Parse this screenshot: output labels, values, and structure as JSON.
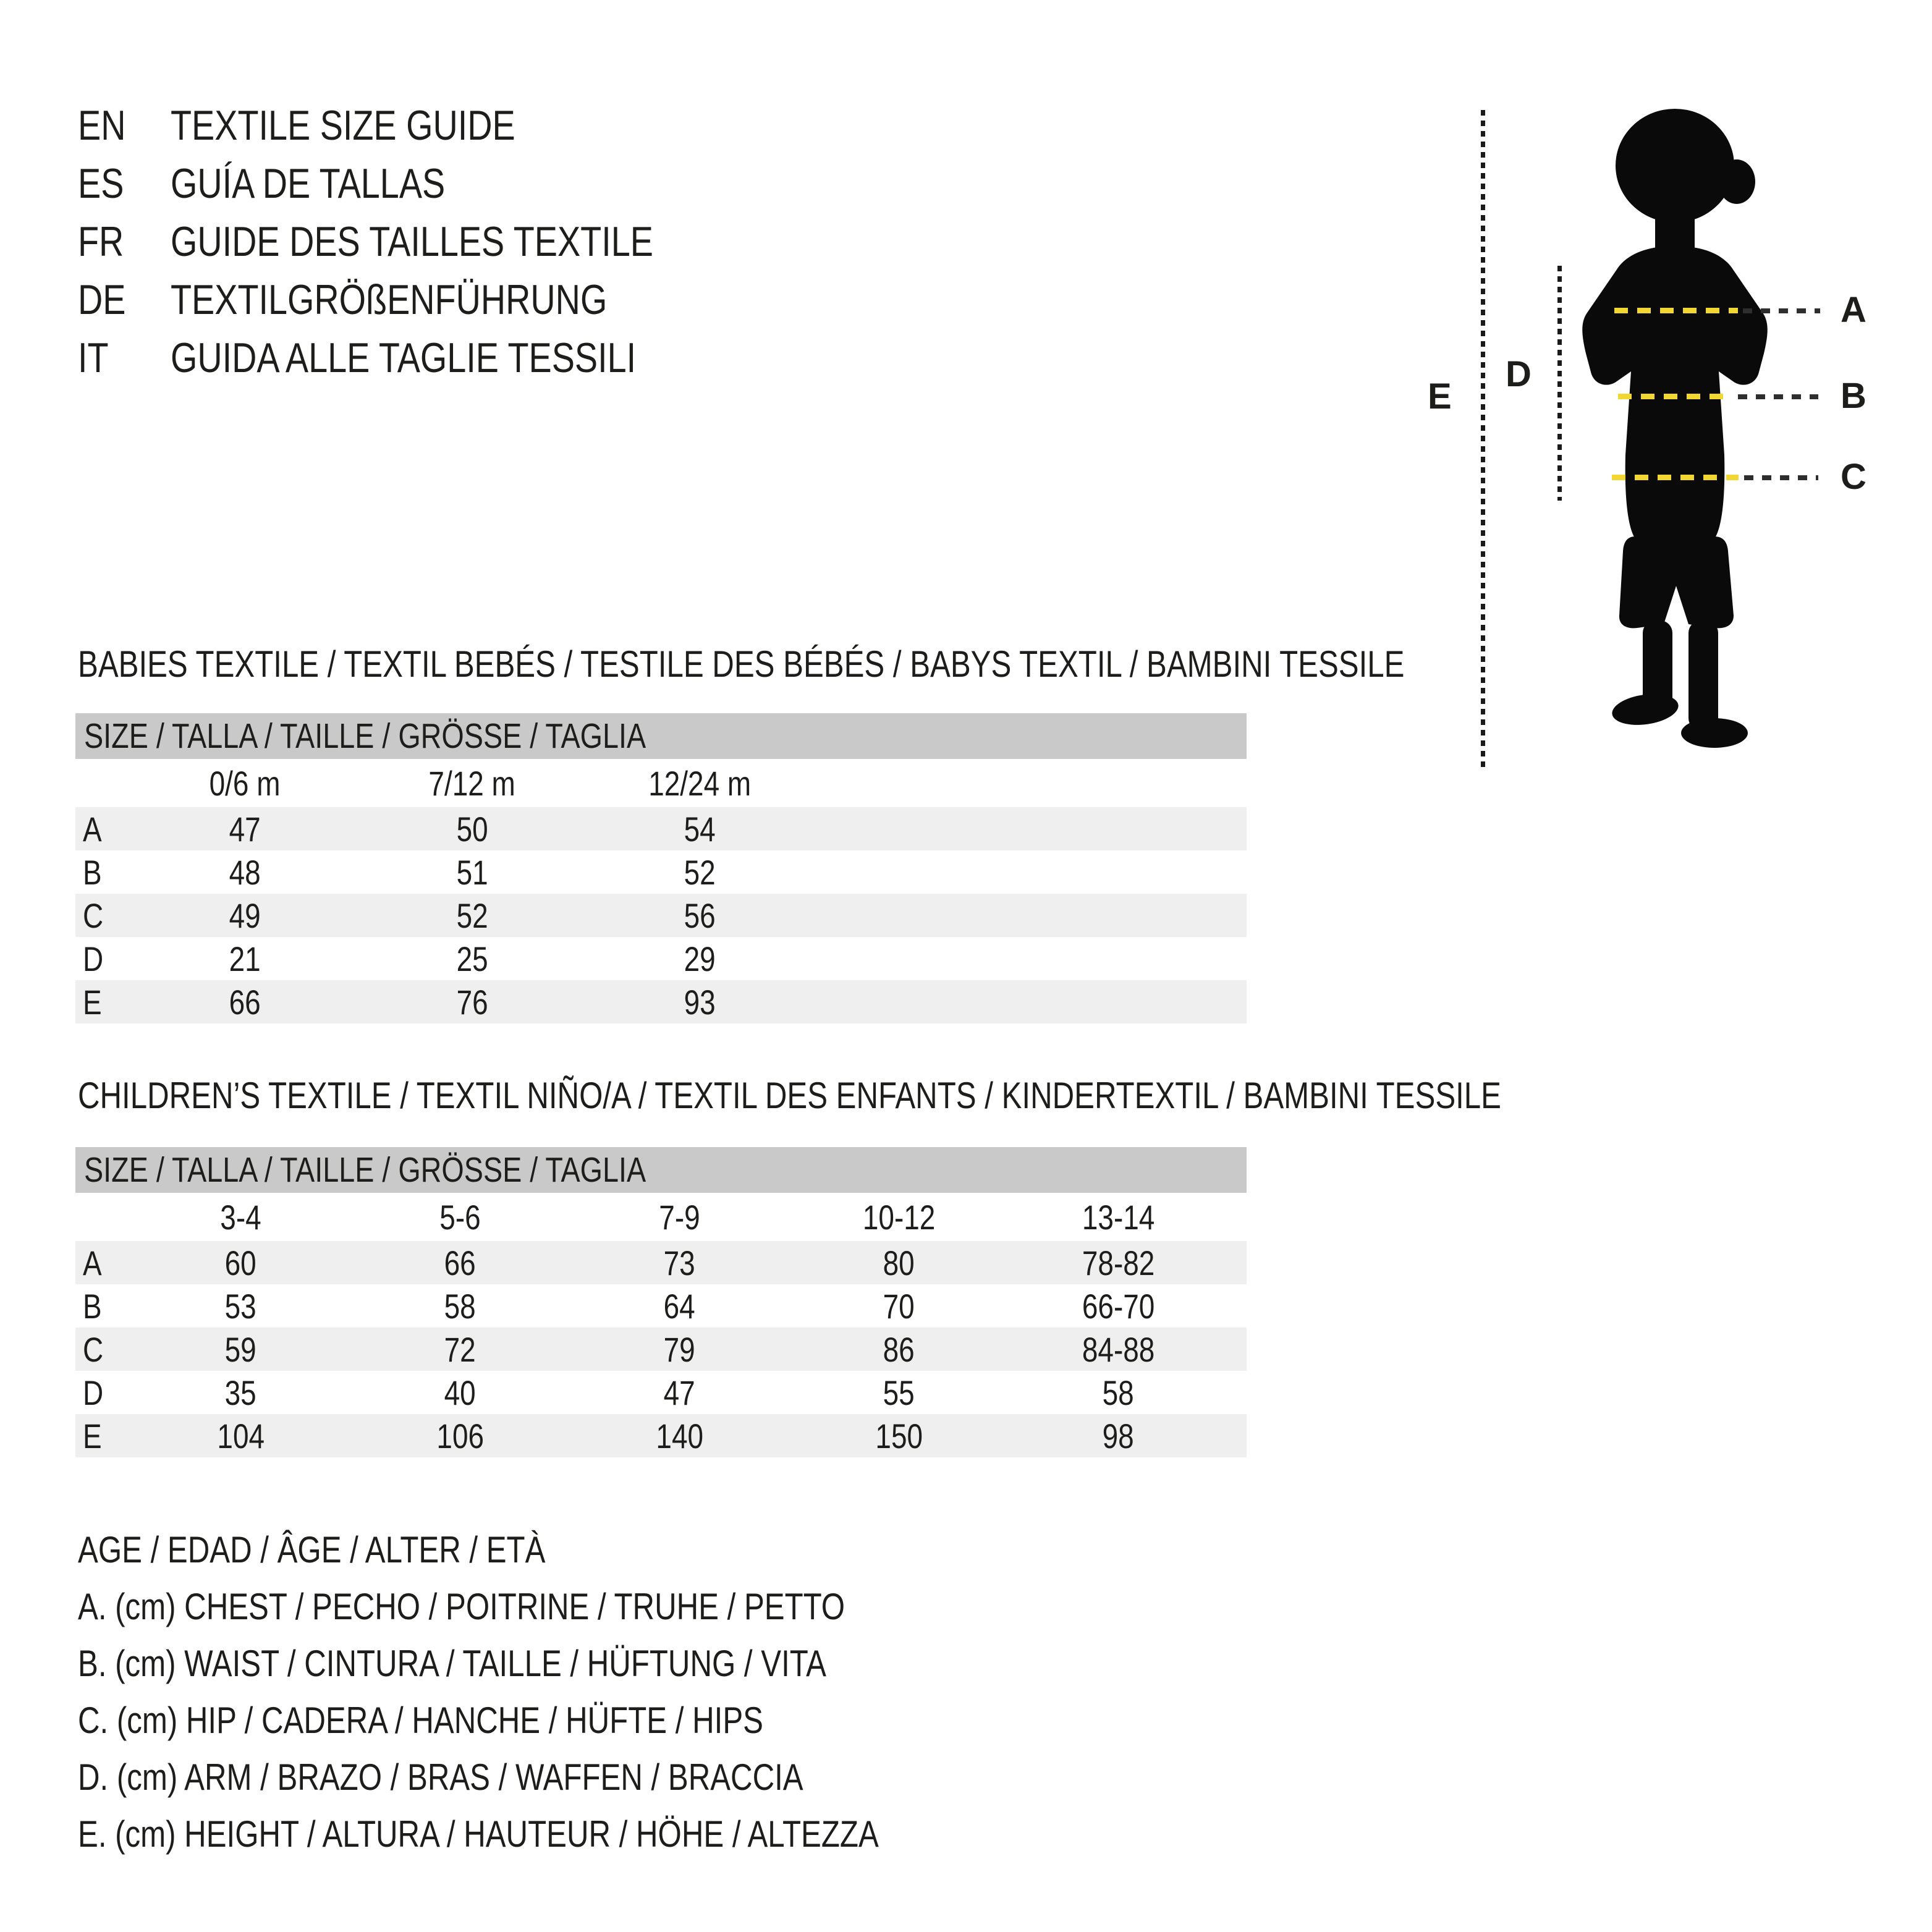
{
  "languages": [
    {
      "code": "EN",
      "title": "TEXTILE SIZE GUIDE"
    },
    {
      "code": "ES",
      "title": "GUÍA DE TALLAS"
    },
    {
      "code": "FR",
      "title": "GUIDE DES TAILLES TEXTILE"
    },
    {
      "code": "DE",
      "title": "TEXTILGRÖßENFÜHRUNG"
    },
    {
      "code": "IT",
      "title": "GUIDA ALLE TAGLIE TESSILI"
    }
  ],
  "figure": {
    "measure_labels": {
      "a": "A",
      "b": "B",
      "c": "C",
      "d": "D",
      "e": "E"
    },
    "accent_yellow": "#f2d733",
    "silhouette_color": "#0a0a0a"
  },
  "babies_table": {
    "section_title": "BABIES TEXTILE / TEXTIL BEBÉS / TESTILE DES BÉBÉS / BABYS TEXTIL / BAMBINI TESSILE",
    "header": "SIZE / TALLA / TAILLE / GRÖSSE / TAGLIA",
    "columns": [
      "0/6 m",
      "7/12 m",
      "12/24 m"
    ],
    "rows": [
      {
        "label": "A",
        "values": [
          "47",
          "50",
          "54"
        ]
      },
      {
        "label": "B",
        "values": [
          "48",
          "51",
          "52"
        ]
      },
      {
        "label": "C",
        "values": [
          "49",
          "52",
          "56"
        ]
      },
      {
        "label": "D",
        "values": [
          "21",
          "25",
          "29"
        ]
      },
      {
        "label": "E",
        "values": [
          "66",
          "76",
          "93"
        ]
      }
    ]
  },
  "children_table": {
    "section_title": "CHILDREN’S TEXTILE / TEXTIL NIÑO/A / TEXTIL DES ENFANTS / KINDERTEXTIL / BAMBINI TESSILE",
    "header": "SIZE / TALLA / TAILLE / GRÖSSE / TAGLIA",
    "columns": [
      "3-4",
      "5-6",
      "7-9",
      "10-12",
      "13-14"
    ],
    "rows": [
      {
        "label": "A",
        "values": [
          "60",
          "66",
          "73",
          "80",
          "78-82"
        ]
      },
      {
        "label": "B",
        "values": [
          "53",
          "58",
          "64",
          "70",
          "66-70"
        ]
      },
      {
        "label": "C",
        "values": [
          "59",
          "72",
          "79",
          "86",
          "84-88"
        ]
      },
      {
        "label": "D",
        "values": [
          "35",
          "40",
          "47",
          "55",
          "58"
        ]
      },
      {
        "label": "E",
        "values": [
          "104",
          "106",
          "140",
          "150",
          "98"
        ]
      }
    ]
  },
  "legend": {
    "lines": [
      "AGE / EDAD / ÂGE / ALTER / ETÀ",
      "A. (cm) CHEST / PECHO / POITRINE / TRUHE / PETTO",
      "B. (cm) WAIST / CINTURA / TAILLE / HÜFTUNG / VITA",
      "C. (cm) HIP / CADERA / HANCHE / HÜFTE / HIPS",
      "D. (cm) ARM / BRAZO / BRAS / WAFFEN / BRACCIA",
      "E. (cm) HEIGHT / ALTURA / HAUTEUR / HÖHE / ALTEZZA"
    ]
  },
  "colors": {
    "text": "#1d1d1b",
    "bar_gray": "#c9c9c9",
    "stripe_gray": "#f0efef",
    "dash_black": "#2e2e2e",
    "accent_yellow": "#f2d733"
  }
}
